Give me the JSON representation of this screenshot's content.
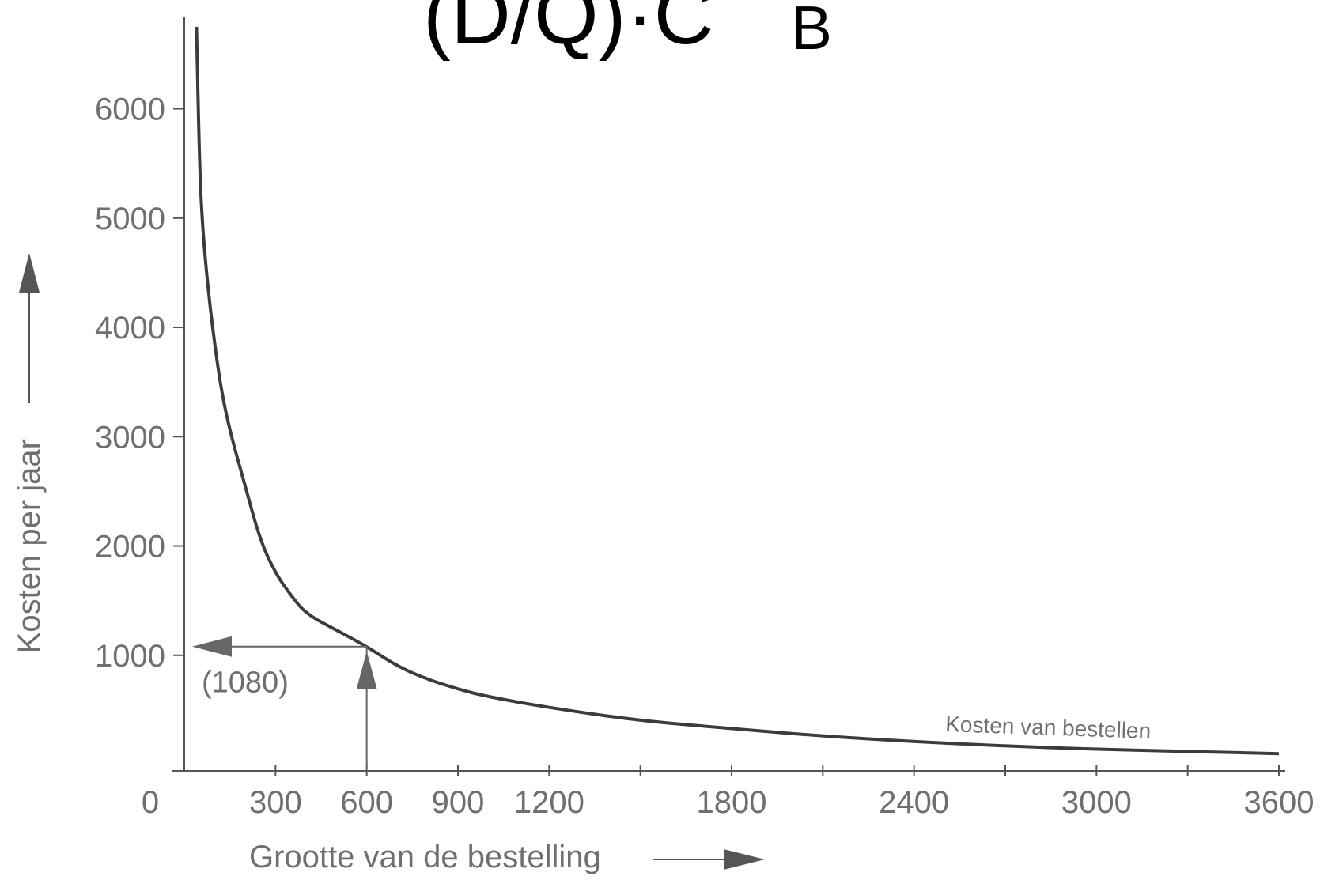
{
  "header": {
    "formula_main": "(D/Q)·C",
    "formula_sub": "B"
  },
  "chart_data": {
    "type": "line",
    "title": "",
    "xlabel": "Grootte van de bestelling",
    "ylabel": "Kosten per jaar",
    "xlim": [
      0,
      3600
    ],
    "ylim": [
      0,
      6800
    ],
    "x_ticks": [
      {
        "value": 0,
        "label": "0"
      },
      {
        "value": 300,
        "label": "300"
      },
      {
        "value": 600,
        "label": "600"
      },
      {
        "value": 900,
        "label": "900"
      },
      {
        "value": 1200,
        "label": "1200"
      },
      {
        "value": 1800,
        "label": "1800"
      },
      {
        "value": 2400,
        "label": "2400"
      },
      {
        "value": 3000,
        "label": "3000"
      },
      {
        "value": 3600,
        "label": "3600"
      }
    ],
    "x_minor_ticks": [
      1500,
      2100,
      2700,
      3300
    ],
    "y_ticks": [
      {
        "value": 1000,
        "label": "1000"
      },
      {
        "value": 2000,
        "label": "2000"
      },
      {
        "value": 3000,
        "label": "3000"
      },
      {
        "value": 4000,
        "label": "4000"
      },
      {
        "value": 5000,
        "label": "5000"
      },
      {
        "value": 6000,
        "label": "6000"
      }
    ],
    "grid": false,
    "series": [
      {
        "name": "Kosten van bestellen",
        "x": [
          40,
          50,
          60,
          80,
          100,
          120,
          150,
          200,
          250,
          300,
          350,
          400,
          500,
          600,
          700,
          800,
          900,
          1000,
          1200,
          1500,
          1800,
          2100,
          2400,
          2700,
          3000,
          3300,
          3600
        ],
        "y": [
          6750,
          5500,
          4900,
          4300,
          3850,
          3450,
          3050,
          2550,
          2050,
          1750,
          1550,
          1380,
          1230,
          1080,
          900,
          780,
          690,
          620,
          520,
          400,
          330,
          260,
          210,
          170,
          140,
          120,
          100
        ]
      }
    ],
    "annotations": [
      {
        "text": "(1080)",
        "x": 20,
        "y": 780
      },
      {
        "text": "Kosten van bestellen",
        "x": 2500,
        "y": 400
      }
    ],
    "markers": {
      "arrow_from_x": 600,
      "arrow_y": 1080
    }
  }
}
